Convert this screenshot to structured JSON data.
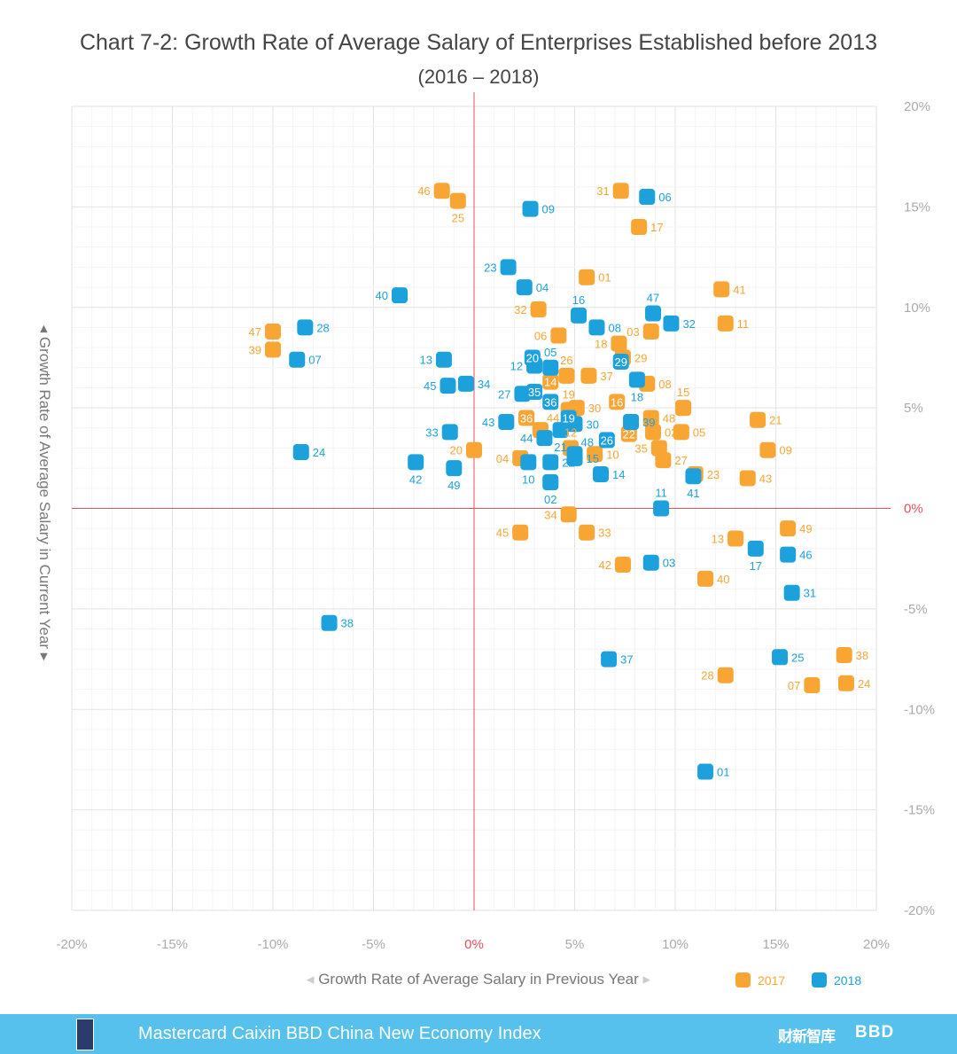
{
  "chart_data": {
    "type": "scatter",
    "title": "Chart 7-2: Growth Rate of Average Salary of Enterprises Established before 2013",
    "subtitle": "(2016 – 2018)",
    "xlabel": "Growth Rate of Average Salary in Previous Year",
    "ylabel": "Growth Rate of Average Salary in Current Year",
    "xlim": [
      -20,
      20
    ],
    "ylim": [
      -20,
      20
    ],
    "x_ticks": [
      "-20%",
      "-15%",
      "-10%",
      "-5%",
      "0%",
      "5%",
      "10%",
      "15%",
      "20%"
    ],
    "y_ticks": [
      "20%",
      "15%",
      "10%",
      "5%",
      "0%",
      "-5%",
      "-10%",
      "-15%",
      "-20%"
    ],
    "grid": true,
    "legend_position": "bottom-right",
    "series": [
      {
        "name": "2017",
        "color": "#F9A533",
        "points": [
          {
            "label": "46",
            "x": -1.6,
            "y": 15.8,
            "pos": "left"
          },
          {
            "label": "25",
            "x": -0.8,
            "y": 15.3,
            "pos": "below"
          },
          {
            "label": "31",
            "x": 7.3,
            "y": 15.8,
            "pos": "left"
          },
          {
            "label": "17",
            "x": 8.2,
            "y": 14.0,
            "pos": "right"
          },
          {
            "label": "01",
            "x": 5.6,
            "y": 11.5,
            "pos": "right"
          },
          {
            "label": "41",
            "x": 12.3,
            "y": 10.9,
            "pos": "right"
          },
          {
            "label": "32",
            "x": 3.2,
            "y": 9.9,
            "pos": "left"
          },
          {
            "label": "11",
            "x": 12.5,
            "y": 9.2,
            "pos": "right"
          },
          {
            "label": "47",
            "x": -10.0,
            "y": 8.8,
            "pos": "left"
          },
          {
            "label": "39",
            "x": -10.0,
            "y": 7.9,
            "pos": "left"
          },
          {
            "label": "06",
            "x": 4.2,
            "y": 8.6,
            "pos": "left"
          },
          {
            "label": "03",
            "x": 8.8,
            "y": 8.8,
            "pos": "left"
          },
          {
            "label": "18",
            "x": 7.2,
            "y": 8.2,
            "pos": "left"
          },
          {
            "label": "29",
            "x": 7.4,
            "y": 7.5,
            "pos": "right"
          },
          {
            "label": "26",
            "x": 4.6,
            "y": 6.6,
            "pos": "above"
          },
          {
            "label": "37",
            "x": 5.7,
            "y": 6.6,
            "pos": "right"
          },
          {
            "label": "14",
            "x": 3.8,
            "y": 6.3,
            "pos": "inside"
          },
          {
            "label": "08",
            "x": 8.6,
            "y": 6.2,
            "pos": "right"
          },
          {
            "label": "15",
            "x": 10.4,
            "y": 5.0,
            "pos": "above"
          },
          {
            "label": "19",
            "x": 4.7,
            "y": 4.9,
            "pos": "above"
          },
          {
            "label": "30",
            "x": 5.1,
            "y": 5.0,
            "pos": "right"
          },
          {
            "label": "16",
            "x": 7.1,
            "y": 5.3,
            "pos": "inside"
          },
          {
            "label": "36",
            "x": 2.6,
            "y": 4.5,
            "pos": "inside"
          },
          {
            "label": "44",
            "x": 3.3,
            "y": 3.9,
            "pos": "above"
          },
          {
            "label": "48",
            "x": 8.8,
            "y": 4.5,
            "pos": "right"
          },
          {
            "label": "21",
            "x": 14.1,
            "y": 4.4,
            "pos": "right"
          },
          {
            "label": "02",
            "x": 8.9,
            "y": 3.8,
            "pos": "right"
          },
          {
            "label": "05",
            "x": 10.3,
            "y": 3.8,
            "pos": "right"
          },
          {
            "label": "22",
            "x": 7.7,
            "y": 3.7,
            "pos": "inside"
          },
          {
            "label": "12",
            "x": 4.8,
            "y": 3.0,
            "pos": "above"
          },
          {
            "label": "35",
            "x": 9.2,
            "y": 3.0,
            "pos": "left"
          },
          {
            "label": "09",
            "x": 14.6,
            "y": 2.9,
            "pos": "right"
          },
          {
            "label": "20",
            "x": 0.0,
            "y": 2.9,
            "pos": "left"
          },
          {
            "label": "04",
            "x": 2.3,
            "y": 2.5,
            "pos": "left"
          },
          {
            "label": "10",
            "x": 6.0,
            "y": 2.7,
            "pos": "right"
          },
          {
            "label": "27",
            "x": 9.4,
            "y": 2.4,
            "pos": "right"
          },
          {
            "label": "23",
            "x": 11.0,
            "y": 1.7,
            "pos": "right"
          },
          {
            "label": "43",
            "x": 13.6,
            "y": 1.5,
            "pos": "right"
          },
          {
            "label": "34",
            "x": 4.7,
            "y": -0.3,
            "pos": "left"
          },
          {
            "label": "45",
            "x": 2.3,
            "y": -1.2,
            "pos": "left"
          },
          {
            "label": "33",
            "x": 5.6,
            "y": -1.2,
            "pos": "right"
          },
          {
            "label": "49",
            "x": 15.6,
            "y": -1.0,
            "pos": "right"
          },
          {
            "label": "13",
            "x": 13.0,
            "y": -1.5,
            "pos": "left"
          },
          {
            "label": "42",
            "x": 7.4,
            "y": -2.8,
            "pos": "left"
          },
          {
            "label": "40",
            "x": 11.5,
            "y": -3.5,
            "pos": "right"
          },
          {
            "label": "38",
            "x": 18.4,
            "y": -7.3,
            "pos": "right"
          },
          {
            "label": "28",
            "x": 12.5,
            "y": -8.3,
            "pos": "left"
          },
          {
            "label": "07",
            "x": 16.8,
            "y": -8.8,
            "pos": "left"
          },
          {
            "label": "24",
            "x": 18.5,
            "y": -8.7,
            "pos": "right"
          }
        ]
      },
      {
        "name": "2018",
        "color": "#1DA1DC",
        "points": [
          {
            "label": "06",
            "x": 8.6,
            "y": 15.5,
            "pos": "right"
          },
          {
            "label": "09",
            "x": 2.8,
            "y": 14.9,
            "pos": "right"
          },
          {
            "label": "23",
            "x": 1.7,
            "y": 12.0,
            "pos": "left"
          },
          {
            "label": "04",
            "x": 2.5,
            "y": 11.0,
            "pos": "right"
          },
          {
            "label": "40",
            "x": -3.7,
            "y": 10.6,
            "pos": "left"
          },
          {
            "label": "16",
            "x": 5.2,
            "y": 9.6,
            "pos": "above"
          },
          {
            "label": "47",
            "x": 8.9,
            "y": 9.7,
            "pos": "above"
          },
          {
            "label": "32",
            "x": 9.8,
            "y": 9.2,
            "pos": "right"
          },
          {
            "label": "08",
            "x": 6.1,
            "y": 9.0,
            "pos": "right"
          },
          {
            "label": "28",
            "x": -8.4,
            "y": 9.0,
            "pos": "right"
          },
          {
            "label": "07",
            "x": -8.8,
            "y": 7.4,
            "pos": "right"
          },
          {
            "label": "13",
            "x": -1.5,
            "y": 7.4,
            "pos": "left"
          },
          {
            "label": "20",
            "x": 2.9,
            "y": 7.5,
            "pos": "inside"
          },
          {
            "label": "12",
            "x": 3.0,
            "y": 7.1,
            "pos": "left"
          },
          {
            "label": "05",
            "x": 3.8,
            "y": 7.0,
            "pos": "above"
          },
          {
            "label": "29",
            "x": 7.3,
            "y": 7.3,
            "pos": "inside"
          },
          {
            "label": "18",
            "x": 8.1,
            "y": 6.4,
            "pos": "above"
          },
          {
            "label": "45",
            "x": -1.3,
            "y": 6.1,
            "pos": "left"
          },
          {
            "label": "34",
            "x": -0.4,
            "y": 6.2,
            "pos": "right"
          },
          {
            "label": "27",
            "x": 2.4,
            "y": 5.7,
            "pos": "left"
          },
          {
            "label": "35",
            "x": 3.0,
            "y": 5.8,
            "pos": "inside"
          },
          {
            "label": "36",
            "x": 3.8,
            "y": 5.3,
            "pos": "inside"
          },
          {
            "label": "19",
            "x": 4.7,
            "y": 4.5,
            "pos": "inside"
          },
          {
            "label": "30",
            "x": 5.0,
            "y": 4.2,
            "pos": "right"
          },
          {
            "label": "39",
            "x": 7.8,
            "y": 4.3,
            "pos": "above"
          },
          {
            "label": "43",
            "x": 1.6,
            "y": 4.3,
            "pos": "left"
          },
          {
            "label": "21",
            "x": 4.3,
            "y": 3.9,
            "pos": "inside"
          },
          {
            "label": "33",
            "x": -1.2,
            "y": 3.8,
            "pos": "left"
          },
          {
            "label": "26",
            "x": 6.6,
            "y": 3.4,
            "pos": "inside"
          },
          {
            "label": "44",
            "x": 3.5,
            "y": 3.5,
            "pos": "left"
          },
          {
            "label": "24",
            "x": -8.6,
            "y": 2.8,
            "pos": "right"
          },
          {
            "label": "22",
            "x": 3.8,
            "y": 2.3,
            "pos": "above"
          },
          {
            "label": "48",
            "x": 5.0,
            "y": 2.7,
            "pos": "inside"
          },
          {
            "label": "42",
            "x": -2.9,
            "y": 2.3,
            "pos": "below"
          },
          {
            "label": "49",
            "x": -1.0,
            "y": 2.0,
            "pos": "below"
          },
          {
            "label": "10",
            "x": 2.7,
            "y": 2.3,
            "pos": "below"
          },
          {
            "label": "15",
            "x": 5.0,
            "y": 2.5,
            "pos": "below"
          },
          {
            "label": "14",
            "x": 6.3,
            "y": 1.7,
            "pos": "right"
          },
          {
            "label": "41",
            "x": 10.9,
            "y": 1.6,
            "pos": "below"
          },
          {
            "label": "02",
            "x": 3.8,
            "y": 1.3,
            "pos": "below"
          },
          {
            "label": "11",
            "x": 9.3,
            "y": 0.0,
            "pos": "above"
          },
          {
            "label": "17",
            "x": 14.0,
            "y": -2.0,
            "pos": "below"
          },
          {
            "label": "46",
            "x": 15.6,
            "y": -2.3,
            "pos": "right"
          },
          {
            "label": "03",
            "x": 8.8,
            "y": -2.7,
            "pos": "right"
          },
          {
            "label": "31",
            "x": 15.8,
            "y": -4.2,
            "pos": "right"
          },
          {
            "label": "38",
            "x": -7.2,
            "y": -5.7,
            "pos": "right"
          },
          {
            "label": "37",
            "x": 6.7,
            "y": -7.5,
            "pos": "right"
          },
          {
            "label": "25",
            "x": 15.2,
            "y": -7.4,
            "pos": "right"
          },
          {
            "label": "01",
            "x": 11.5,
            "y": -13.1,
            "pos": "right"
          }
        ]
      }
    ]
  },
  "footer": {
    "index_name": "Mastercard Caixin BBD China New Economy Index",
    "logo_caixin": "财新智库",
    "logo_bbd": "BBD"
  }
}
